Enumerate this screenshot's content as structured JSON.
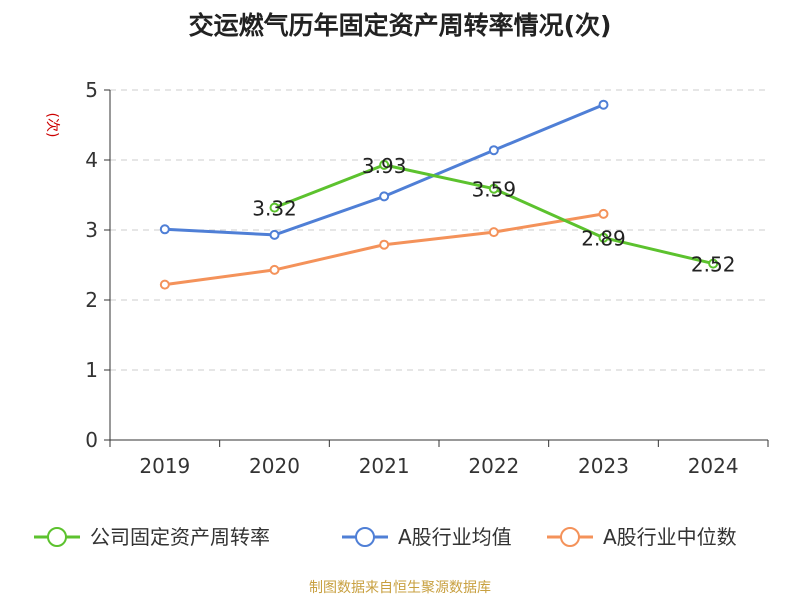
{
  "chart_data": {
    "type": "line",
    "title": "交运燃气历年固定资产周转率情况(次)",
    "ylabel": "(次)",
    "xlabel": "",
    "categories": [
      "2019",
      "2020",
      "2021",
      "2022",
      "2023",
      "2024"
    ],
    "ylim": [
      0,
      5
    ],
    "yticks": [
      0,
      1,
      2,
      3,
      4,
      5
    ],
    "grid": true,
    "legend_position": "bottom",
    "series": [
      {
        "name": "公司固定资产周转率",
        "color": "#5cc22e",
        "values": [
          null,
          3.32,
          3.93,
          3.59,
          2.89,
          2.52
        ],
        "labels": [
          "",
          "3.32",
          "3.93",
          "3.59",
          "2.89",
          "2.52"
        ]
      },
      {
        "name": "A股行业均值",
        "color": "#4f7fd6",
        "values": [
          3.01,
          2.93,
          3.48,
          4.14,
          4.79,
          null
        ]
      },
      {
        "name": "A股行业中位数",
        "color": "#f4925a",
        "values": [
          2.22,
          2.43,
          2.79,
          2.97,
          3.23,
          null
        ]
      }
    ]
  },
  "source": "制图数据来自恒生聚源数据库"
}
